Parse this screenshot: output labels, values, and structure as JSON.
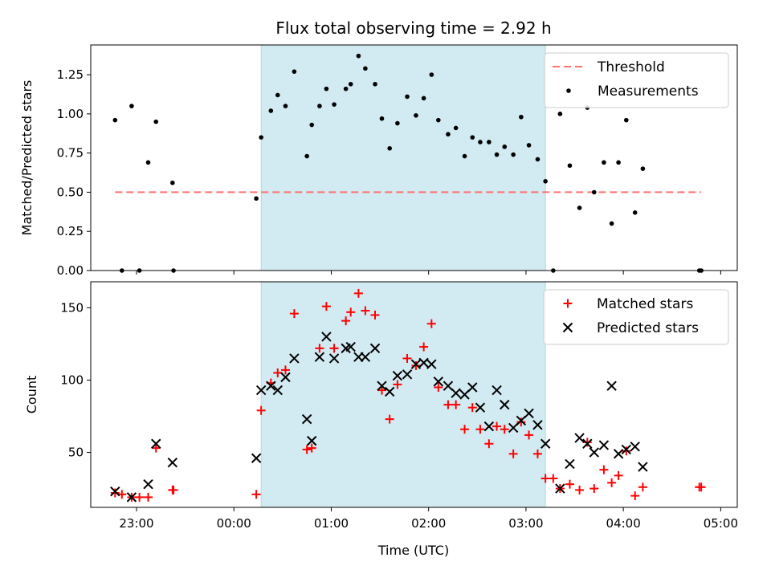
{
  "chart_data": {
    "type": "scatter",
    "title": "Flux total observing time = 2.92 h",
    "xlabel": "Time (UTC)",
    "x_unit": "hours_since_22:00",
    "xlim": [
      0.53,
      7.17
    ],
    "xticks": [
      1,
      2,
      3,
      4,
      5,
      6,
      7
    ],
    "xtick_labels": [
      "23:00",
      "00:00",
      "01:00",
      "02:00",
      "03:00",
      "04:00",
      "05:00"
    ],
    "shaded_interval": {
      "start": 2.28,
      "end": 5.2,
      "color": "#d2eaf1"
    },
    "panels": [
      {
        "name": "ratio",
        "ylabel": "Matched/Predicted stars",
        "ylim": [
          0,
          1.44
        ],
        "yticks": [
          0,
          0.25,
          0.5,
          0.75,
          1.0,
          1.25
        ],
        "ytick_labels": [
          "0.00",
          "0.25",
          "0.50",
          "0.75",
          "1.00",
          "1.25"
        ],
        "threshold": {
          "label": "Threshold",
          "value": 0.5,
          "x": [
            0.78,
            6.8
          ],
          "color": "#ff7070"
        },
        "series": [
          {
            "name": "Measurements",
            "marker": "dot",
            "color": "#000000",
            "points": [
              [
                0.78,
                0.96
              ],
              [
                0.85,
                0.0
              ],
              [
                0.95,
                1.05
              ],
              [
                1.03,
                0.0
              ],
              [
                1.12,
                0.69
              ],
              [
                1.2,
                0.95
              ],
              [
                1.37,
                0.56
              ],
              [
                1.38,
                0.0
              ],
              [
                2.23,
                0.46
              ],
              [
                2.28,
                0.85
              ],
              [
                2.38,
                1.02
              ],
              [
                2.45,
                1.12
              ],
              [
                2.53,
                1.05
              ],
              [
                2.62,
                1.27
              ],
              [
                2.75,
                0.73
              ],
              [
                2.8,
                0.93
              ],
              [
                2.88,
                1.05
              ],
              [
                2.95,
                1.16
              ],
              [
                3.03,
                1.06
              ],
              [
                3.15,
                1.16
              ],
              [
                3.2,
                1.19
              ],
              [
                3.28,
                1.37
              ],
              [
                3.35,
                1.29
              ],
              [
                3.45,
                1.19
              ],
              [
                3.52,
                0.97
              ],
              [
                3.6,
                0.78
              ],
              [
                3.68,
                0.94
              ],
              [
                3.78,
                1.11
              ],
              [
                3.87,
                0.99
              ],
              [
                3.95,
                1.1
              ],
              [
                4.03,
                1.25
              ],
              [
                4.1,
                0.96
              ],
              [
                4.2,
                0.87
              ],
              [
                4.28,
                0.91
              ],
              [
                4.37,
                0.73
              ],
              [
                4.45,
                0.85
              ],
              [
                4.53,
                0.82
              ],
              [
                4.62,
                0.82
              ],
              [
                4.7,
                0.74
              ],
              [
                4.78,
                0.79
              ],
              [
                4.87,
                0.74
              ],
              [
                4.95,
                0.98
              ],
              [
                5.03,
                0.8
              ],
              [
                5.12,
                0.71
              ],
              [
                5.2,
                0.57
              ],
              [
                5.28,
                0.0
              ],
              [
                5.35,
                1.0
              ],
              [
                5.45,
                0.67
              ],
              [
                5.55,
                0.4
              ],
              [
                5.63,
                1.04
              ],
              [
                5.7,
                0.5
              ],
              [
                5.8,
                0.69
              ],
              [
                5.88,
                0.3
              ],
              [
                5.95,
                0.69
              ],
              [
                6.03,
                0.96
              ],
              [
                6.12,
                0.37
              ],
              [
                6.2,
                0.65
              ],
              [
                6.78,
                0.0
              ],
              [
                6.8,
                0.0
              ]
            ]
          }
        ],
        "legend": [
          "Threshold",
          "Measurements"
        ]
      },
      {
        "name": "counts",
        "ylabel": "Count",
        "ylim": [
          12,
          168
        ],
        "yticks": [
          50,
          100,
          150
        ],
        "ytick_labels": [
          "50",
          "100",
          "150"
        ],
        "series": [
          {
            "name": "Matched stars",
            "marker": "plus",
            "color": "#ff0000",
            "points": [
              [
                0.78,
                22
              ],
              [
                0.85,
                21
              ],
              [
                0.95,
                19
              ],
              [
                1.03,
                19
              ],
              [
                1.12,
                19
              ],
              [
                1.2,
                53
              ],
              [
                1.37,
                24
              ],
              [
                1.38,
                24
              ],
              [
                2.23,
                21
              ],
              [
                2.28,
                79
              ],
              [
                2.38,
                98
              ],
              [
                2.45,
                105
              ],
              [
                2.53,
                107
              ],
              [
                2.62,
                146
              ],
              [
                2.75,
                52
              ],
              [
                2.8,
                53
              ],
              [
                2.88,
                122
              ],
              [
                2.95,
                151
              ],
              [
                3.03,
                122
              ],
              [
                3.15,
                141
              ],
              [
                3.2,
                147
              ],
              [
                3.28,
                160
              ],
              [
                3.35,
                148
              ],
              [
                3.45,
                145
              ],
              [
                3.52,
                93
              ],
              [
                3.6,
                73
              ],
              [
                3.68,
                97
              ],
              [
                3.78,
                115
              ],
              [
                3.87,
                110
              ],
              [
                3.95,
                123
              ],
              [
                4.03,
                139
              ],
              [
                4.1,
                95
              ],
              [
                4.2,
                83
              ],
              [
                4.28,
                83
              ],
              [
                4.37,
                66
              ],
              [
                4.45,
                81
              ],
              [
                4.53,
                66
              ],
              [
                4.62,
                56
              ],
              [
                4.7,
                68
              ],
              [
                4.78,
                66
              ],
              [
                4.87,
                49
              ],
              [
                4.95,
                71
              ],
              [
                5.03,
                62
              ],
              [
                5.12,
                49
              ],
              [
                5.2,
                32
              ],
              [
                5.28,
                32
              ],
              [
                5.35,
                25
              ],
              [
                5.45,
                28
              ],
              [
                5.55,
                24
              ],
              [
                5.63,
                57
              ],
              [
                5.7,
                25
              ],
              [
                5.8,
                38
              ],
              [
                5.88,
                29
              ],
              [
                5.95,
                34
              ],
              [
                6.03,
                51
              ],
              [
                6.12,
                20
              ],
              [
                6.2,
                26
              ],
              [
                6.78,
                26
              ],
              [
                6.8,
                26
              ]
            ]
          },
          {
            "name": "Predicted stars",
            "marker": "cross",
            "color": "#000000",
            "points": [
              [
                0.78,
                23
              ],
              [
                0.95,
                19
              ],
              [
                1.12,
                28
              ],
              [
                1.2,
                56
              ],
              [
                1.37,
                43
              ],
              [
                2.23,
                46
              ],
              [
                2.28,
                93
              ],
              [
                2.38,
                96
              ],
              [
                2.45,
                93
              ],
              [
                2.53,
                102
              ],
              [
                2.62,
                115
              ],
              [
                2.75,
                73
              ],
              [
                2.8,
                58
              ],
              [
                2.88,
                116
              ],
              [
                2.95,
                130
              ],
              [
                3.03,
                115
              ],
              [
                3.15,
                122
              ],
              [
                3.2,
                123
              ],
              [
                3.28,
                116
              ],
              [
                3.35,
                116
              ],
              [
                3.45,
                122
              ],
              [
                3.52,
                96
              ],
              [
                3.6,
                92
              ],
              [
                3.68,
                103
              ],
              [
                3.78,
                104
              ],
              [
                3.87,
                111
              ],
              [
                3.95,
                112
              ],
              [
                4.03,
                111
              ],
              [
                4.1,
                99
              ],
              [
                4.2,
                96
              ],
              [
                4.28,
                91
              ],
              [
                4.37,
                90
              ],
              [
                4.45,
                95
              ],
              [
                4.53,
                81
              ],
              [
                4.62,
                68
              ],
              [
                4.7,
                93
              ],
              [
                4.78,
                83
              ],
              [
                4.87,
                67
              ],
              [
                4.95,
                72
              ],
              [
                5.03,
                77
              ],
              [
                5.12,
                69
              ],
              [
                5.2,
                56
              ],
              [
                5.35,
                25
              ],
              [
                5.45,
                42
              ],
              [
                5.55,
                60
              ],
              [
                5.63,
                56
              ],
              [
                5.7,
                50
              ],
              [
                5.8,
                55
              ],
              [
                5.88,
                96
              ],
              [
                5.95,
                49
              ],
              [
                6.03,
                52
              ],
              [
                6.12,
                54
              ],
              [
                6.2,
                40
              ]
            ]
          }
        ],
        "legend": [
          "Matched stars",
          "Predicted stars"
        ]
      }
    ]
  }
}
